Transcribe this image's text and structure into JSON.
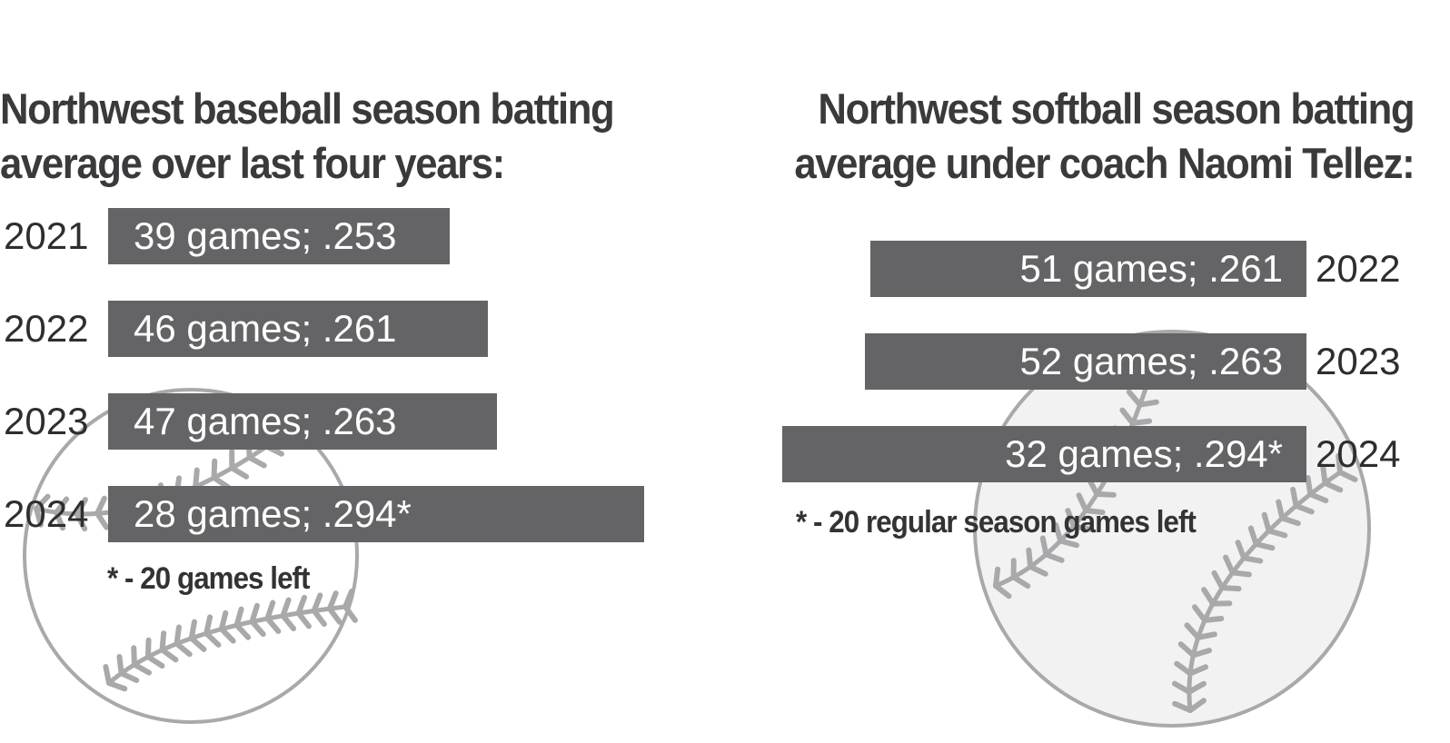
{
  "chart_data": [
    {
      "type": "bar",
      "orientation": "horizontal",
      "title_lines": [
        "Northwest baseball season batting",
        "average over last four years:"
      ],
      "categories": [
        "2021",
        "2022",
        "2023",
        "2024"
      ],
      "games": [
        39,
        46,
        47,
        28
      ],
      "values": [
        0.253,
        0.261,
        0.263,
        0.294
      ],
      "labels": [
        "39 games; .253",
        "46 games; .261",
        "47 games; .263",
        "28 games; .294*"
      ],
      "note": "*  - 20 games left",
      "grid": false,
      "bar_color": "#646466"
    },
    {
      "type": "bar",
      "orientation": "horizontal",
      "title_lines": [
        "Northwest softball season batting",
        "average under coach Naomi Tellez:"
      ],
      "categories": [
        "2022",
        "2023",
        "2024"
      ],
      "games": [
        51,
        52,
        32
      ],
      "values": [
        0.261,
        0.263,
        0.294
      ],
      "labels": [
        "51 games; .261",
        "52 games; .263",
        "32 games; .294*"
      ],
      "note": "*  - 20 regular season games left",
      "grid": false,
      "bar_color": "#646466"
    }
  ],
  "decoration": {
    "icon": "baseball-icon",
    "ball_fill": "#f2f2f2",
    "ball_stroke": "#a9a9ab",
    "stitch_color": "#a9a9ab"
  }
}
